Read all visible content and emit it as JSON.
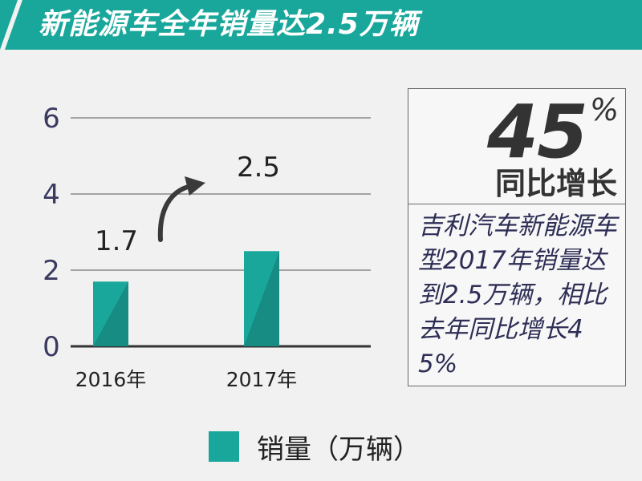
{
  "title": "新能源车全年销量达2.5万辆",
  "colors": {
    "title_bg": "#1aa79b",
    "bar": "#1aa79b",
    "bar_shade": "#168c82"
  },
  "chart_data": {
    "type": "bar",
    "categories": [
      "2016年",
      "2017年"
    ],
    "series": [
      {
        "name": "销量（万辆）",
        "values": [
          1.7,
          2.5
        ]
      }
    ],
    "data_labels": [
      "1.7",
      "2.5"
    ],
    "ylim": [
      0,
      6
    ],
    "yticks": [
      0,
      2,
      4,
      6
    ],
    "grid": true,
    "legend": "bottom",
    "xlabel": "",
    "ylabel": ""
  },
  "callout": {
    "percent": "45",
    "percent_sign": "%",
    "label": "同比增长",
    "description": "吉利汽车新能源车型2017年销量达到2.5万辆，相比去年同比增长45%"
  }
}
